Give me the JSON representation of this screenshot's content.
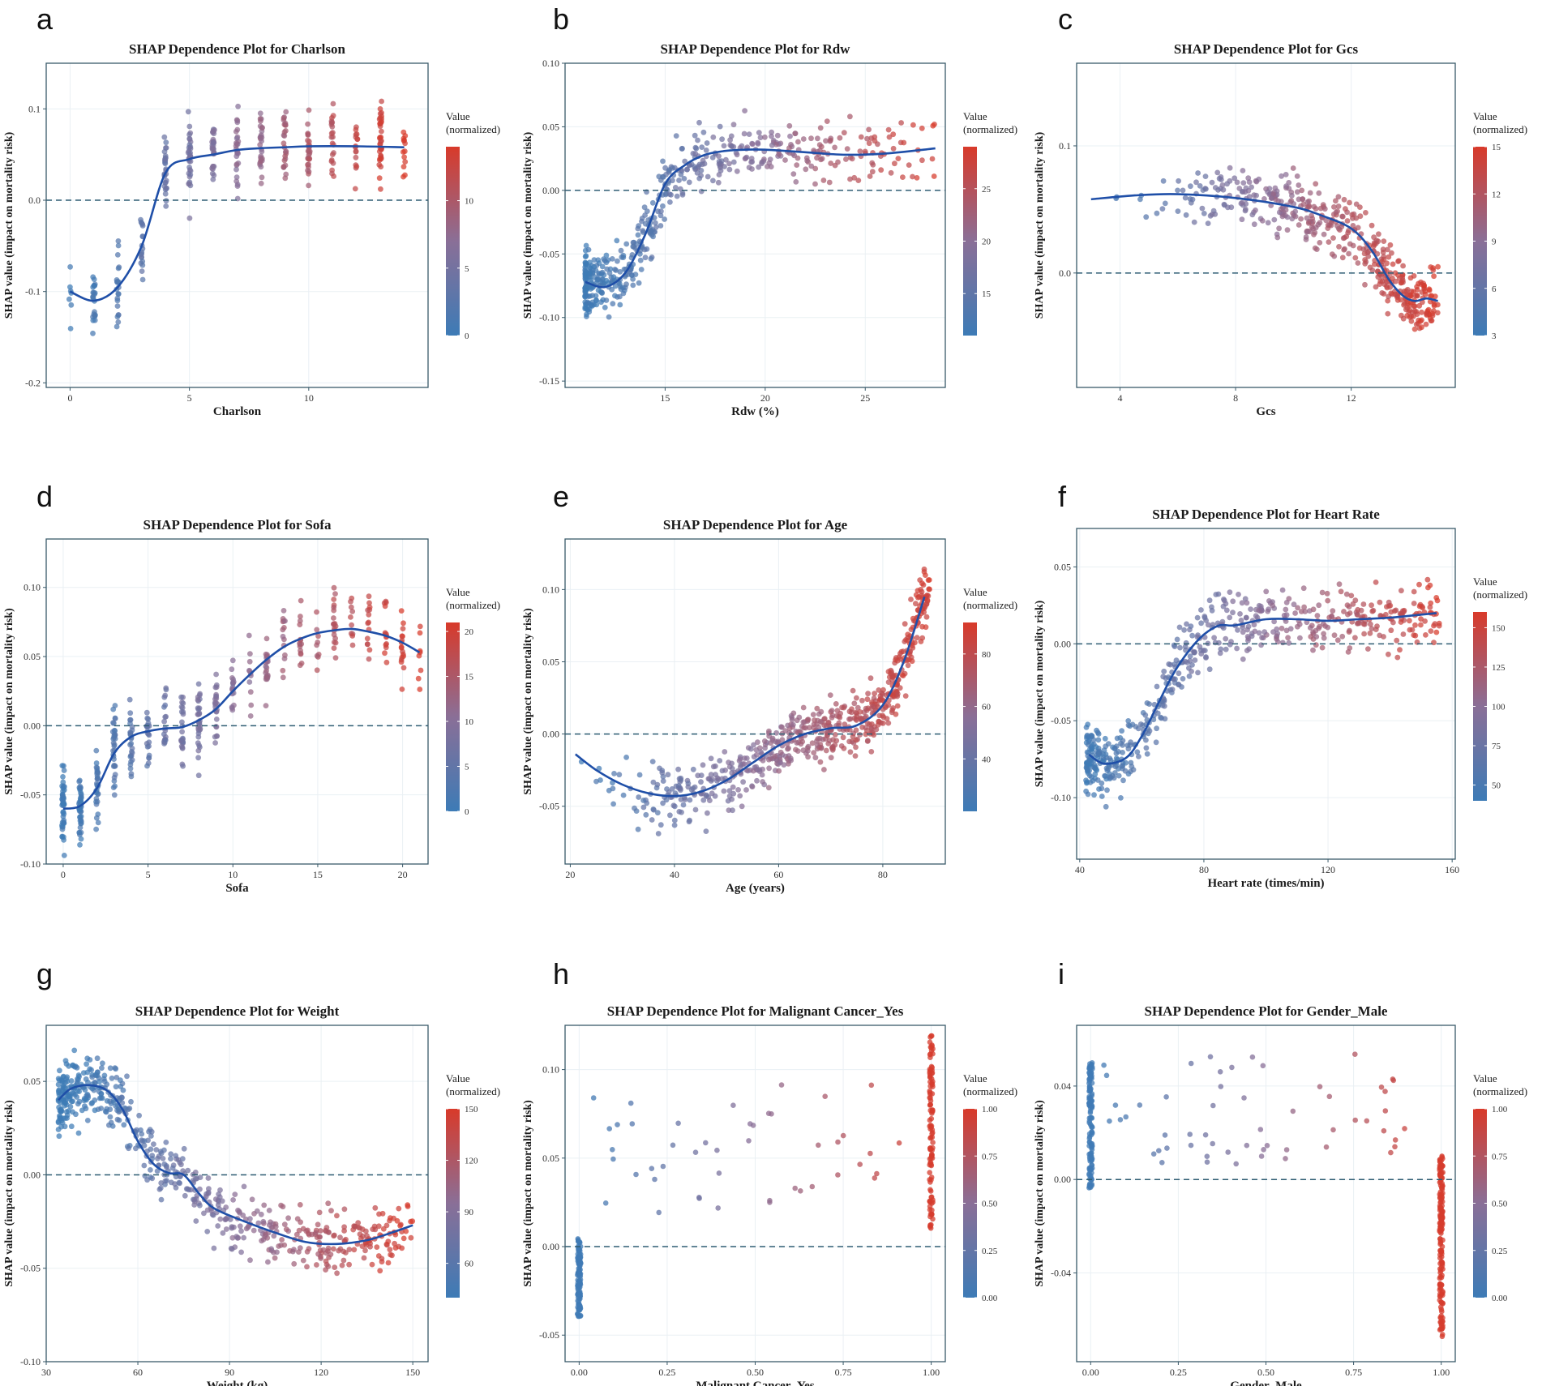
{
  "chart_data": [
    {
      "letter": "a",
      "type": "scatter",
      "title": "SHAP Dependence Plot for  Charlson",
      "xlabel": "Charlson",
      "ylabel": "SHAP value (impact on mortality risk)",
      "xlim": [
        -1,
        15
      ],
      "ylim": [
        -0.205,
        0.15
      ],
      "xticks": [
        0,
        5,
        10
      ],
      "xtick_labels": [
        "0",
        "5",
        "10"
      ],
      "yticks": [
        -0.2,
        -0.1,
        0.0,
        0.1
      ],
      "ytick_labels": [
        "-0.2",
        "-0.1",
        "0.0",
        "0.1"
      ],
      "legend": {
        "title": [
          "Value",
          "(normalized)"
        ],
        "range": [
          0,
          14
        ],
        "ticks": [
          0,
          5,
          10
        ],
        "tick_labels": [
          "0",
          "5",
          "10"
        ]
      },
      "points": {
        "seed": 11,
        "n": 360,
        "xmin": 0,
        "xmax": 14,
        "discrete": true,
        "noise": 0.035
      },
      "curve": [
        [
          0,
          -0.1
        ],
        [
          1,
          -0.11
        ],
        [
          2,
          -0.095
        ],
        [
          3,
          -0.05
        ],
        [
          4,
          0.03
        ],
        [
          5,
          0.045
        ],
        [
          6,
          0.05
        ],
        [
          7,
          0.055
        ],
        [
          8,
          0.057
        ],
        [
          9,
          0.058
        ],
        [
          10,
          0.059
        ],
        [
          12,
          0.059
        ],
        [
          14,
          0.058
        ]
      ]
    },
    {
      "letter": "b",
      "type": "scatter",
      "title": "SHAP Dependence Plot for  Rdw",
      "xlabel": "Rdw (%)",
      "ylabel": "SHAP value (impact on mortality risk)",
      "xlim": [
        10,
        29
      ],
      "ylim": [
        -0.155,
        0.1
      ],
      "xticks": [
        15,
        20,
        25
      ],
      "xtick_labels": [
        "15",
        "20",
        "25"
      ],
      "yticks": [
        -0.15,
        -0.1,
        -0.05,
        0.0,
        0.05,
        0.1
      ],
      "ytick_labels": [
        "-0.15",
        "-0.10",
        "-0.05",
        "0.00",
        "0.05",
        "0.10"
      ],
      "legend": {
        "title": [
          "Value",
          "(normalized)"
        ],
        "range": [
          11,
          29
        ],
        "ticks": [
          15,
          20,
          25
        ],
        "tick_labels": [
          "15",
          "20",
          "25"
        ]
      },
      "points": {
        "seed": 23,
        "n": 520,
        "xmin": 11,
        "xmax": 28.5,
        "skew": 2.2,
        "noise": 0.02
      },
      "curve": [
        [
          11,
          -0.072
        ],
        [
          12,
          -0.076
        ],
        [
          13,
          -0.065
        ],
        [
          14,
          -0.035
        ],
        [
          15,
          0.005
        ],
        [
          16,
          0.02
        ],
        [
          17,
          0.028
        ],
        [
          18,
          0.031
        ],
        [
          19,
          0.032
        ],
        [
          20,
          0.032
        ],
        [
          22,
          0.03
        ],
        [
          24,
          0.028
        ],
        [
          26,
          0.029
        ],
        [
          28.5,
          0.033
        ]
      ]
    },
    {
      "letter": "c",
      "type": "scatter",
      "title": "SHAP Dependence Plot for  Gcs",
      "xlabel": "Gcs",
      "ylabel": "SHAP value (impact on mortality risk)",
      "xlim": [
        2.5,
        15.6
      ],
      "ylim": [
        -0.09,
        0.165
      ],
      "xticks": [
        4,
        8,
        12
      ],
      "xtick_labels": [
        "4",
        "8",
        "12"
      ],
      "yticks": [
        0.0,
        0.1
      ],
      "ytick_labels": [
        "0.0",
        "0.1"
      ],
      "legend": {
        "title": [
          "Value",
          "(normalized)"
        ],
        "range": [
          3,
          15
        ],
        "ticks": [
          3,
          6,
          9,
          12,
          15
        ],
        "tick_labels": [
          "3",
          "6",
          "9",
          "12",
          "15"
        ]
      },
      "points": {
        "seed": 37,
        "n": 460,
        "xmin": 3,
        "xmax": 15,
        "skew": 0.45,
        "noise": 0.02
      },
      "curve": [
        [
          3,
          0.058
        ],
        [
          4.5,
          0.061
        ],
        [
          6,
          0.062
        ],
        [
          8,
          0.059
        ],
        [
          10,
          0.052
        ],
        [
          11,
          0.045
        ],
        [
          12,
          0.035
        ],
        [
          12.7,
          0.018
        ],
        [
          13.3,
          -0.005
        ],
        [
          13.8,
          -0.018
        ],
        [
          14.2,
          -0.022
        ],
        [
          14.6,
          -0.02
        ],
        [
          15,
          -0.022
        ]
      ]
    },
    {
      "letter": "d",
      "type": "scatter",
      "title": "SHAP Dependence Plot for Sofa",
      "xlabel": "Sofa",
      "ylabel": "SHAP value (impact on mortality risk)",
      "xlim": [
        -1,
        21.5
      ],
      "ylim": [
        -0.1,
        0.135
      ],
      "xticks": [
        0,
        5,
        10,
        15,
        20
      ],
      "xtick_labels": [
        "0",
        "5",
        "10",
        "15",
        "20"
      ],
      "yticks": [
        -0.1,
        -0.05,
        0.0,
        0.05,
        0.1
      ],
      "ytick_labels": [
        "-0.10",
        "-0.05",
        "0.00",
        "0.05",
        "0.10"
      ],
      "legend": {
        "title": [
          "Value",
          "(normalized)"
        ],
        "range": [
          0,
          21
        ],
        "ticks": [
          0,
          5,
          10,
          15,
          20
        ],
        "tick_labels": [
          "0",
          "5",
          "10",
          "15",
          "20"
        ]
      },
      "points": {
        "seed": 41,
        "n": 480,
        "xmin": 0,
        "xmax": 21,
        "discrete": true,
        "skew": 1.6,
        "noise": 0.022
      },
      "curve": [
        [
          0,
          -0.06
        ],
        [
          1,
          -0.058
        ],
        [
          2,
          -0.045
        ],
        [
          3,
          -0.02
        ],
        [
          4,
          -0.008
        ],
        [
          5,
          -0.004
        ],
        [
          6,
          -0.002
        ],
        [
          7,
          -0.001
        ],
        [
          8,
          0.004
        ],
        [
          9,
          0.012
        ],
        [
          10,
          0.025
        ],
        [
          11,
          0.037
        ],
        [
          12,
          0.048
        ],
        [
          13,
          0.057
        ],
        [
          14,
          0.063
        ],
        [
          15,
          0.067
        ],
        [
          16,
          0.069
        ],
        [
          17,
          0.07
        ],
        [
          18,
          0.068
        ],
        [
          19,
          0.065
        ],
        [
          20,
          0.06
        ],
        [
          21,
          0.053
        ]
      ]
    },
    {
      "letter": "e",
      "type": "scatter",
      "title": "SHAP Dependence Plot for Age",
      "xlabel": "Age (years)",
      "ylabel": "SHAP value (impact on mortality risk)",
      "xlim": [
        19,
        92
      ],
      "ylim": [
        -0.09,
        0.135
      ],
      "xticks": [
        20,
        40,
        60,
        80
      ],
      "xtick_labels": [
        "20",
        "40",
        "60",
        "80"
      ],
      "yticks": [
        -0.05,
        0.0,
        0.05,
        0.1
      ],
      "ytick_labels": [
        "-0.05",
        "0.00",
        "0.05",
        "0.10"
      ],
      "legend": {
        "title": [
          "Value",
          "(normalized)"
        ],
        "range": [
          20,
          92
        ],
        "ticks": [
          40,
          60,
          80
        ],
        "tick_labels": [
          "40",
          "60",
          "80"
        ]
      },
      "points": {
        "seed": 53,
        "n": 620,
        "xmin": 21,
        "xmax": 89,
        "skew": 0.55,
        "noise": 0.018
      },
      "curve": [
        [
          21,
          -0.014
        ],
        [
          25,
          -0.025
        ],
        [
          30,
          -0.035
        ],
        [
          35,
          -0.041
        ],
        [
          40,
          -0.043
        ],
        [
          45,
          -0.04
        ],
        [
          50,
          -0.032
        ],
        [
          55,
          -0.02
        ],
        [
          60,
          -0.008
        ],
        [
          65,
          0.0
        ],
        [
          70,
          0.004
        ],
        [
          75,
          0.006
        ],
        [
          80,
          0.02
        ],
        [
          84,
          0.05
        ],
        [
          88,
          0.095
        ]
      ]
    },
    {
      "letter": "f",
      "type": "scatter",
      "title": "SHAP Dependence Plot for  Heart Rate",
      "xlabel": "Heart rate (times/min)",
      "ylabel": "SHAP value (impact on mortality risk)",
      "xlim": [
        39,
        161
      ],
      "ylim": [
        -0.14,
        0.075
      ],
      "xticks": [
        40,
        80,
        120,
        160
      ],
      "xtick_labels": [
        "40",
        "80",
        "120",
        "160"
      ],
      "yticks": [
        -0.1,
        -0.05,
        0.0,
        0.05
      ],
      "ytick_labels": [
        "-0.10",
        "-0.05",
        "0.00",
        "0.05"
      ],
      "legend": {
        "title": [
          "Value",
          "(normalized)"
        ],
        "range": [
          40,
          160
        ],
        "ticks": [
          50,
          75,
          100,
          125,
          150
        ],
        "tick_labels": [
          "50",
          "75",
          "100",
          "125",
          "150"
        ]
      },
      "points": {
        "seed": 67,
        "n": 560,
        "xmin": 42,
        "xmax": 156,
        "skew": 1.5,
        "noise": 0.018
      },
      "curve": [
        [
          43,
          -0.072
        ],
        [
          48,
          -0.078
        ],
        [
          55,
          -0.074
        ],
        [
          60,
          -0.06
        ],
        [
          65,
          -0.04
        ],
        [
          70,
          -0.02
        ],
        [
          75,
          -0.005
        ],
        [
          80,
          0.006
        ],
        [
          85,
          0.012
        ],
        [
          90,
          0.012
        ],
        [
          100,
          0.016
        ],
        [
          110,
          0.016
        ],
        [
          120,
          0.015
        ],
        [
          130,
          0.016
        ],
        [
          140,
          0.017
        ],
        [
          150,
          0.019
        ],
        [
          155,
          0.02
        ]
      ]
    },
    {
      "letter": "g",
      "type": "scatter",
      "title": "SHAP Dependence Plot for  Weight",
      "xlabel": "Weight (kg)",
      "ylabel": "SHAP value (impact on mortality risk)",
      "xlim": [
        30,
        155
      ],
      "ylim": [
        -0.1,
        0.08
      ],
      "xticks": [
        30,
        60,
        90,
        120,
        150
      ],
      "xtick_labels": [
        "30",
        "60",
        "90",
        "120",
        "150"
      ],
      "yticks": [
        -0.1,
        -0.05,
        0.0,
        0.05
      ],
      "ytick_labels": [
        "-0.10",
        "-0.05",
        "0.00",
        "0.05"
      ],
      "legend": {
        "title": [
          "Value",
          "(normalized)"
        ],
        "range": [
          40,
          150
        ],
        "ticks": [
          60,
          90,
          120,
          150
        ],
        "tick_labels": [
          "60",
          "90",
          "120",
          "150"
        ]
      },
      "points": {
        "seed": 71,
        "n": 600,
        "xmin": 34,
        "xmax": 150,
        "skew": 1.7,
        "noise": 0.013
      },
      "curve": [
        [
          34,
          0.04
        ],
        [
          38,
          0.046
        ],
        [
          44,
          0.048
        ],
        [
          50,
          0.045
        ],
        [
          55,
          0.035
        ],
        [
          60,
          0.018
        ],
        [
          65,
          0.006
        ],
        [
          70,
          0.001
        ],
        [
          75,
          0.0
        ],
        [
          80,
          -0.01
        ],
        [
          85,
          -0.018
        ],
        [
          95,
          -0.025
        ],
        [
          105,
          -0.031
        ],
        [
          115,
          -0.036
        ],
        [
          125,
          -0.037
        ],
        [
          135,
          -0.035
        ],
        [
          143,
          -0.031
        ],
        [
          150,
          -0.027
        ]
      ]
    },
    {
      "letter": "h",
      "type": "binary",
      "title": "SHAP Dependence Plot for Malignant Cancer_Yes",
      "xlabel": "Malignant Cancer_Yes",
      "ylabel": "SHAP value (impact on mortality risk)",
      "xlim": [
        -0.04,
        1.04
      ],
      "ylim": [
        -0.065,
        0.125
      ],
      "xticks": [
        0,
        0.25,
        0.5,
        0.75,
        1
      ],
      "xtick_labels": [
        "0.00",
        "0.25",
        "0.50",
        "0.75",
        "1.00"
      ],
      "yticks": [
        -0.05,
        0.0,
        0.05,
        0.1
      ],
      "ytick_labels": [
        "-0.05",
        "0.00",
        "0.05",
        "0.10"
      ],
      "legend": {
        "title": [
          "Value",
          "(normalized)"
        ],
        "range": [
          0,
          1
        ],
        "ticks": [
          0,
          0.25,
          0.5,
          0.75,
          1
        ],
        "tick_labels": [
          "0.00",
          "0.25",
          "0.50",
          "0.75",
          "1.00"
        ]
      },
      "points": {
        "seed": 83,
        "n0": 120,
        "y0": [
          -0.04,
          0.005
        ],
        "n1": 110,
        "y1": [
          0.01,
          0.12
        ],
        "nmid": 45,
        "ymid": [
          0.018,
          0.092
        ]
      }
    },
    {
      "letter": "i",
      "type": "binary",
      "title": "SHAP Dependence Plot for  Gender_Male",
      "xlabel": "Gender_Male",
      "ylabel": "SHAP value (impact on mortality risk)",
      "xlim": [
        -0.04,
        1.04
      ],
      "ylim": [
        -0.078,
        0.066
      ],
      "xticks": [
        0,
        0.25,
        0.5,
        0.75,
        1
      ],
      "xtick_labels": [
        "0.00",
        "0.25",
        "0.50",
        "0.75",
        "1.00"
      ],
      "yticks": [
        -0.04,
        0.0,
        0.04
      ],
      "ytick_labels": [
        "-0.04",
        "0.00",
        "0.04"
      ],
      "legend": {
        "title": [
          "Value",
          "(normalized)"
        ],
        "range": [
          0,
          1
        ],
        "ticks": [
          0,
          0.25,
          0.5,
          0.75,
          1
        ],
        "tick_labels": [
          "0.00",
          "0.25",
          "0.50",
          "0.75",
          "1.00"
        ]
      },
      "points": {
        "seed": 97,
        "n0": 130,
        "y0": [
          -0.004,
          0.05
        ],
        "n1": 170,
        "y1": [
          -0.068,
          0.01
        ],
        "nmid": 55,
        "ymid": [
          0.005,
          0.054
        ]
      }
    }
  ],
  "colors": {
    "low": "#3d7bb6",
    "mid": "#8a6f97",
    "high": "#d83a2a",
    "curve": "#1f4fa8",
    "zero_line": "#2f5d73",
    "frame": "#3a5a6a",
    "grid": "#eaf0f4"
  }
}
